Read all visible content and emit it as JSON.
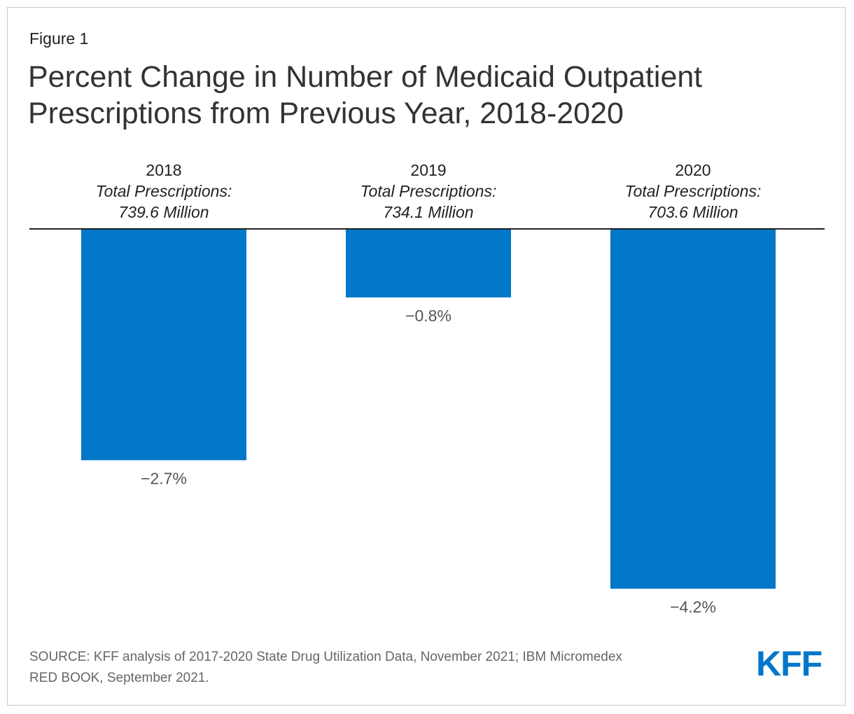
{
  "figure_label": "Figure 1",
  "title_line1": "Percent Change in Number of Medicaid Outpatient",
  "title_line2": "Prescriptions from Previous Year, 2018-2020",
  "source_line1": "SOURCE: KFF analysis of 2017-2020 State Drug Utilization Data, November 2021; IBM Micromedex",
  "source_line2": "RED BOOK, September 2021.",
  "logo_text": "KFF",
  "colors": {
    "bar": "#0077c8",
    "axis": "#222222",
    "label": "#555555",
    "logo": "#0077c8"
  },
  "chart_data": {
    "type": "bar",
    "title": "Percent Change in Number of Medicaid Outpatient Prescriptions from Previous Year, 2018-2020",
    "categories": [
      "2018",
      "2019",
      "2020"
    ],
    "subtitle_prefix": "Total Prescriptions:",
    "totals": [
      "739.6 Million",
      "734.1 Million",
      "703.6 Million"
    ],
    "values": [
      -2.7,
      -0.8,
      -4.2
    ],
    "value_labels": [
      "−2.7%",
      "−0.8%",
      "−4.2%"
    ],
    "unit": "%",
    "ylim": [
      -4.2,
      0
    ],
    "grid": false,
    "legend": "none"
  }
}
